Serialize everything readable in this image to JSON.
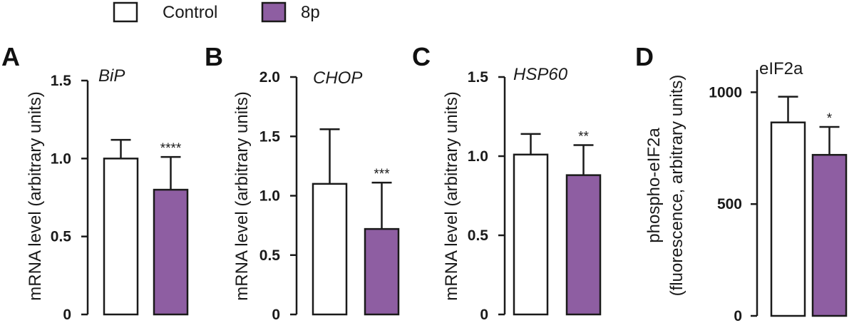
{
  "legend": {
    "items": [
      {
        "label": "Control",
        "color": "#ffffff"
      },
      {
        "label": "8p",
        "color": "#8e5ea2"
      }
    ]
  },
  "colors": {
    "control_fill": "#ffffff",
    "treatment_fill": "#8e5ea2",
    "stroke": "#1a1a1a"
  },
  "chart_data": [
    {
      "type": "bar",
      "panel": "A",
      "title": "BiP",
      "title_italic": true,
      "ylabel": "mRNA level (arbitrary units)",
      "ylim": [
        0,
        1.5
      ],
      "yticks": [
        0,
        0.5,
        1.0,
        1.5
      ],
      "ytick_labels": [
        "0",
        "0.5",
        "1.0",
        "1.5"
      ],
      "categories": [
        "Control",
        "8p"
      ],
      "values": [
        1.0,
        0.8
      ],
      "errors": [
        0.12,
        0.21
      ],
      "significance": [
        "",
        "****"
      ]
    },
    {
      "type": "bar",
      "panel": "B",
      "title": "CHOP",
      "title_italic": true,
      "ylabel": "mRNA level (arbitrary units)",
      "ylim": [
        0,
        2.0
      ],
      "yticks": [
        0,
        0.5,
        1.0,
        1.5,
        2.0
      ],
      "ytick_labels": [
        "0",
        "0.5",
        "1.0",
        "1.5",
        "2.0"
      ],
      "categories": [
        "Control",
        "8p"
      ],
      "values": [
        1.1,
        0.72
      ],
      "errors": [
        0.46,
        0.39
      ],
      "significance": [
        "",
        "***"
      ]
    },
    {
      "type": "bar",
      "panel": "C",
      "title": "HSP60",
      "title_italic": true,
      "ylabel": "mRNA level (arbitrary units)",
      "ylim": [
        0,
        1.5
      ],
      "yticks": [
        0,
        0.5,
        1.0,
        1.5
      ],
      "ytick_labels": [
        "0",
        "0.5",
        "1.0",
        "1.5"
      ],
      "categories": [
        "Control",
        "8p"
      ],
      "values": [
        1.01,
        0.88
      ],
      "errors": [
        0.13,
        0.19
      ],
      "significance": [
        "",
        "**"
      ]
    },
    {
      "type": "bar",
      "panel": "D",
      "title": "eIF2a",
      "title_italic": false,
      "ylabel": [
        "phospho-eIF2a",
        "(fluorescence, arbitrary units)"
      ],
      "ylim": [
        0,
        1100
      ],
      "yticks": [
        0,
        500,
        1000
      ],
      "ytick_labels": [
        "0",
        "500",
        "1000"
      ],
      "categories": [
        "Control",
        "8p"
      ],
      "values": [
        865,
        720
      ],
      "errors": [
        115,
        125
      ],
      "significance": [
        "",
        "*"
      ]
    }
  ]
}
